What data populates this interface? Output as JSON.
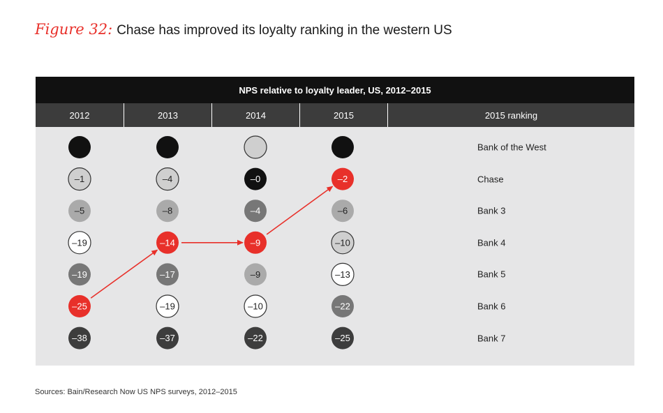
{
  "figure": {
    "label": "Figure 32:",
    "title": "Chase has improved its loyalty ranking in the western US"
  },
  "source": "Sources: Bain/Research Now US NPS surveys, 2012–2015",
  "colors": {
    "red": "#e8302a",
    "black": "#111111",
    "dark_gray": "#3d3d3d",
    "mid_gray": "#777777",
    "light_gray": "#aaaaaa",
    "pale_gray": "#cfcfcf",
    "white": "#ffffff",
    "panel": "#e6e6e7",
    "header": "#111111",
    "subheader": "#3c3c3c"
  },
  "chart_data": {
    "type": "table",
    "title": "NPS relative to loyalty leader, US, 2012–2015",
    "columns": [
      "2012",
      "2013",
      "2014",
      "2015"
    ],
    "ranking_header": "2015 ranking",
    "rows": [
      {
        "bank": "Bank of the West",
        "cells": [
          {
            "value": "",
            "fill": "black"
          },
          {
            "value": "",
            "fill": "black"
          },
          {
            "value": "",
            "fill": "pale_gray"
          },
          {
            "value": "",
            "fill": "black"
          }
        ]
      },
      {
        "bank": "Chase",
        "cells": [
          {
            "value": "–1",
            "fill": "pale_gray"
          },
          {
            "value": "–4",
            "fill": "pale_gray"
          },
          {
            "value": "–0",
            "fill": "black"
          },
          {
            "value": "–2",
            "fill": "red"
          }
        ]
      },
      {
        "bank": "Bank 3",
        "cells": [
          {
            "value": "–5",
            "fill": "light_gray"
          },
          {
            "value": "–8",
            "fill": "light_gray"
          },
          {
            "value": "–4",
            "fill": "mid_gray"
          },
          {
            "value": "–6",
            "fill": "light_gray"
          }
        ]
      },
      {
        "bank": "Bank 4",
        "cells": [
          {
            "value": "–19",
            "fill": "white"
          },
          {
            "value": "–14",
            "fill": "red"
          },
          {
            "value": "–9",
            "fill": "red"
          },
          {
            "value": "–10",
            "fill": "pale_gray"
          }
        ]
      },
      {
        "bank": "Bank 5",
        "cells": [
          {
            "value": "–19",
            "fill": "mid_gray"
          },
          {
            "value": "–17",
            "fill": "mid_gray"
          },
          {
            "value": "–9",
            "fill": "light_gray"
          },
          {
            "value": "–13",
            "fill": "white"
          }
        ]
      },
      {
        "bank": "Bank 6",
        "cells": [
          {
            "value": "–25",
            "fill": "red"
          },
          {
            "value": "–19",
            "fill": "white"
          },
          {
            "value": "–10",
            "fill": "white"
          },
          {
            "value": "–22",
            "fill": "mid_gray"
          }
        ]
      },
      {
        "bank": "Bank 7",
        "cells": [
          {
            "value": "–38",
            "fill": "dark_gray"
          },
          {
            "value": "–37",
            "fill": "dark_gray"
          },
          {
            "value": "–22",
            "fill": "dark_gray"
          },
          {
            "value": "–25",
            "fill": "dark_gray"
          }
        ]
      }
    ],
    "highlight_path": [
      {
        "year": "2012",
        "row": 5
      },
      {
        "year": "2013",
        "row": 3
      },
      {
        "year": "2014",
        "row": 3
      },
      {
        "year": "2015",
        "row": 1
      }
    ]
  }
}
